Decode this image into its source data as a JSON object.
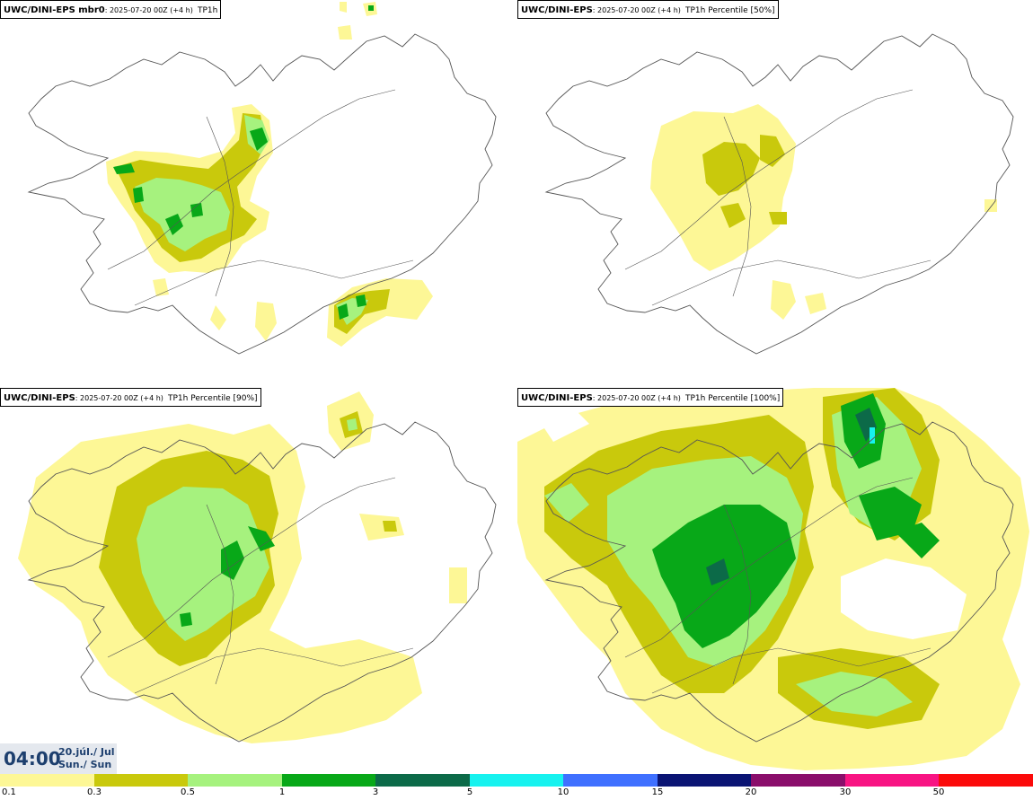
{
  "panels": [
    {
      "model": "UWC/DINI-EPS mbr0",
      "run": "2025-07-20 00Z (+4 h)",
      "variable": "TP1h"
    },
    {
      "model": "UWC/DINI-EPS",
      "run": "2025-07-20 00Z (+4 h)",
      "variable": "TP1h Percentile [50%]"
    },
    {
      "model": "UWC/DINI-EPS",
      "run": "2025-07-20 00Z (+4 h)",
      "variable": "TP1h Percentile [90%]"
    },
    {
      "model": "UWC/DINI-EPS",
      "run": "2025-07-20 00Z (+4 h)",
      "variable": "TP1h Percentile [100%]"
    }
  ],
  "time": {
    "label": "04:00",
    "date": "20.júl./ Jul",
    "day": "Sun./ Sun"
  },
  "legend": {
    "ticks": [
      "0.1",
      "0.3",
      "0.5",
      "1",
      "3",
      "5",
      "10",
      "15",
      "20",
      "30",
      "50"
    ],
    "colors": [
      "#fdf796",
      "#c9c90c",
      "#a6f27e",
      "#08a818",
      "#0c6a48",
      "#17f2ef",
      "#3f70ff",
      "#0a1473",
      "#8a0e6b",
      "#f81483",
      "#fb0a0a"
    ]
  },
  "colors": {
    "map_line": "#555555",
    "precip_03": "#fdf796",
    "precip_05": "#c9c90c",
    "precip_1": "#a6f27e",
    "precip_3": "#08a818",
    "precip_5": "#0c6a48",
    "precip_10": "#17f2ef"
  }
}
